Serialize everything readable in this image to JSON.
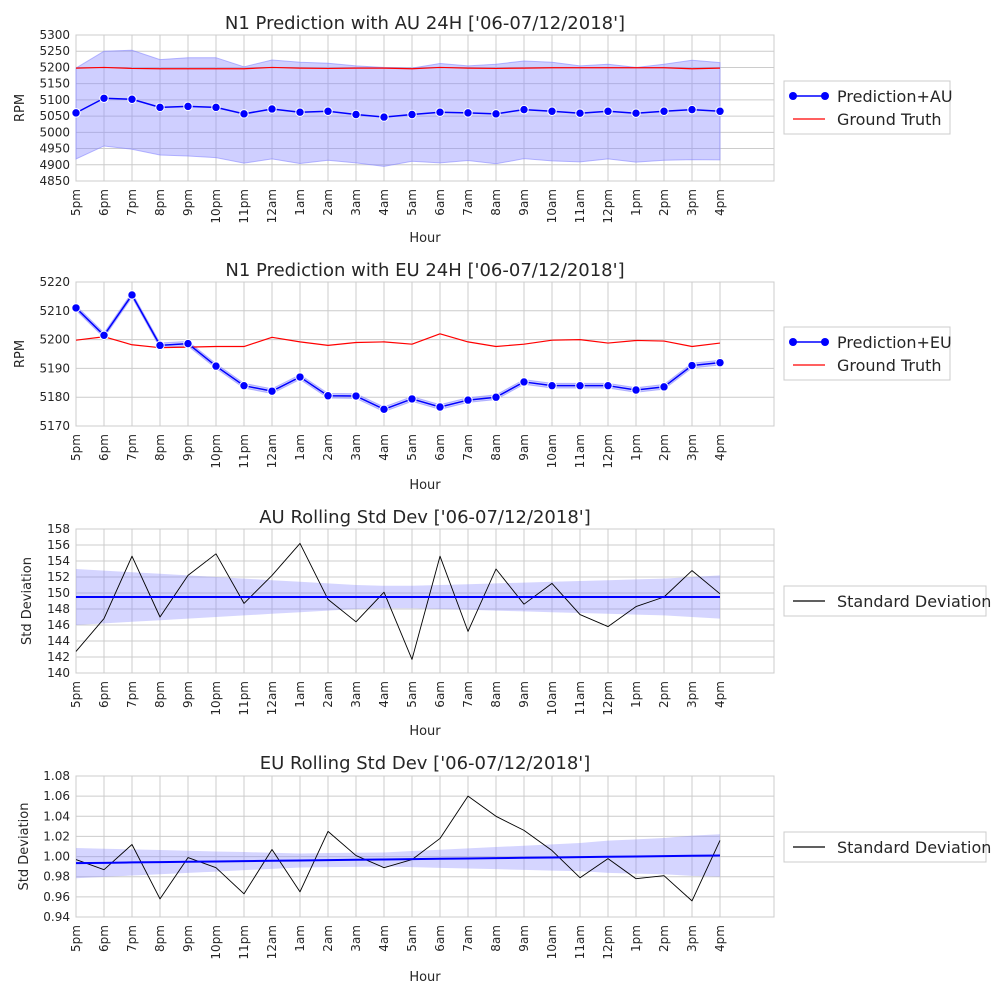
{
  "figure": {
    "hours": [
      "5pm",
      "6pm",
      "7pm",
      "8pm",
      "9pm",
      "10pm",
      "11pm",
      "12am",
      "1am",
      "2am",
      "3am",
      "4am",
      "5am",
      "6am",
      "7am",
      "8am",
      "9am",
      "10am",
      "11am",
      "12pm",
      "1pm",
      "2pm",
      "3pm",
      "4pm"
    ]
  },
  "colors": {
    "prediction": "#0000ff",
    "ground_truth": "#ff0000",
    "band": "#8888ff",
    "std_line": "#000000",
    "grid": "#cccccc"
  },
  "chart_data": [
    {
      "type": "line",
      "title": "N1 Prediction with AU 24H ['06-07/12/2018']",
      "xlabel": "Hour",
      "ylabel": "RPM",
      "ylim": [
        4850,
        5300
      ],
      "yticks": [
        4850,
        4900,
        4950,
        5000,
        5050,
        5100,
        5150,
        5200,
        5250,
        5300
      ],
      "grid": true,
      "legend_placement": "right",
      "series": [
        {
          "name": "Prediction+AU",
          "marker": true,
          "color": "#0000ff",
          "values": [
            5060,
            5105,
            5102,
            5077,
            5080,
            5077,
            5057,
            5072,
            5062,
            5065,
            5055,
            5047,
            5055,
            5062,
            5060,
            5057,
            5070,
            5065,
            5059,
            5065,
            5059,
            5065,
            5070,
            5065
          ],
          "band_upper": [
            5198,
            5250,
            5253,
            5224,
            5230,
            5230,
            5202,
            5223,
            5216,
            5213,
            5205,
            5200,
            5198,
            5212,
            5205,
            5210,
            5220,
            5216,
            5205,
            5210,
            5200,
            5210,
            5222,
            5215
          ],
          "band_lower": [
            4918,
            4958,
            4948,
            4930,
            4927,
            4922,
            4905,
            4918,
            4904,
            4914,
            4906,
            4895,
            4911,
            4906,
            4913,
            4903,
            4919,
            4912,
            4909,
            4918,
            4908,
            4914,
            4916,
            4915
          ]
        },
        {
          "name": "Ground Truth",
          "marker": false,
          "color": "#ff0000",
          "values": [
            5198,
            5200,
            5197,
            5196,
            5196,
            5196,
            5196,
            5200,
            5198,
            5197,
            5198,
            5198,
            5196,
            5200,
            5198,
            5197,
            5198,
            5199,
            5199,
            5199,
            5199,
            5199,
            5196,
            5198
          ]
        }
      ]
    },
    {
      "type": "line",
      "title": "N1 Prediction with EU 24H ['06-07/12/2018']",
      "xlabel": "Hour",
      "ylabel": "RPM",
      "ylim": [
        5170,
        5220
      ],
      "yticks": [
        5170,
        5180,
        5190,
        5200,
        5210,
        5220
      ],
      "grid": true,
      "legend_placement": "right",
      "series": [
        {
          "name": "Prediction+EU",
          "marker": true,
          "color": "#0000ff",
          "values": [
            5211,
            5201.5,
            5215.5,
            5198,
            5198.6,
            5190.8,
            5184,
            5182.1,
            5187,
            5180.5,
            5180.4,
            5175.8,
            5179.4,
            5176.6,
            5179,
            5180,
            5185.3,
            5184,
            5184,
            5184,
            5182.5,
            5183.6,
            5191,
            5192
          ],
          "band_halfwidth": 0.8
        },
        {
          "name": "Ground Truth",
          "marker": false,
          "color": "#ff0000",
          "values": [
            5199.8,
            5201,
            5198.2,
            5197.2,
            5197.4,
            5197.6,
            5197.6,
            5200.8,
            5199.2,
            5198,
            5199,
            5199.2,
            5198.4,
            5202,
            5199.2,
            5197.6,
            5198.4,
            5199.8,
            5200,
            5198.8,
            5199.7,
            5199.5,
            5197.6,
            5198.8
          ]
        }
      ]
    },
    {
      "type": "line",
      "title": "AU Rolling Std Dev ['06-07/12/2018']",
      "xlabel": "Hour",
      "ylabel": "Std Deviation",
      "ylim": [
        140,
        158
      ],
      "yticks": [
        140,
        142,
        144,
        146,
        148,
        150,
        152,
        154,
        156,
        158
      ],
      "grid": true,
      "legend_placement": "right",
      "series": [
        {
          "name": "Standard Deviation",
          "color": "#000000",
          "values": [
            142.7,
            146.8,
            154.6,
            147,
            152.2,
            154.9,
            148.7,
            152.2,
            156.2,
            149.2,
            146.4,
            150.1,
            141.7,
            154.6,
            145.2,
            153,
            148.6,
            151.2,
            147.3,
            145.8,
            148.3,
            149.5,
            152.8,
            149.9
          ]
        }
      ],
      "trend": {
        "color": "#0000ff",
        "values": [
          149.5,
          149.5,
          149.5,
          149.5,
          149.5,
          149.5,
          149.5,
          149.5,
          149.5,
          149.5,
          149.5,
          149.5,
          149.5,
          149.5,
          149.5,
          149.5,
          149.5,
          149.5,
          149.5,
          149.5,
          149.5,
          149.5,
          149.5,
          149.5
        ],
        "band_halfwidth": [
          3.5,
          3.3,
          3.1,
          2.9,
          2.7,
          2.5,
          2.3,
          2.1,
          1.9,
          1.7,
          1.5,
          1.4,
          1.4,
          1.5,
          1.6,
          1.7,
          1.8,
          1.9,
          2.0,
          2.1,
          2.2,
          2.3,
          2.5,
          2.7
        ]
      }
    },
    {
      "type": "line",
      "title": "EU Rolling Std Dev ['06-07/12/2018']",
      "xlabel": "Hour",
      "ylabel": "Std Deviation",
      "ylim": [
        0.94,
        1.08
      ],
      "yticks": [
        "0.94",
        "0.96",
        "0.98",
        "1.00",
        "1.02",
        "1.04",
        "1.06",
        "1.08"
      ],
      "grid": true,
      "legend_placement": "right",
      "series": [
        {
          "name": "Standard Deviation",
          "color": "#000000",
          "values": [
            0.997,
            0.987,
            1.012,
            0.958,
            0.999,
            0.989,
            0.963,
            1.007,
            0.965,
            1.025,
            1.001,
            0.989,
            0.997,
            1.018,
            1.06,
            1.04,
            1.026,
            1.006,
            0.979,
            0.998,
            0.978,
            0.981,
            0.956,
            1.016
          ]
        }
      ],
      "trend": {
        "color": "#0000ff",
        "values": [
          0.9935,
          0.9938,
          0.9942,
          0.9945,
          0.9948,
          0.9951,
          0.9955,
          0.9958,
          0.9961,
          0.9965,
          0.9968,
          0.9971,
          0.9975,
          0.9978,
          0.9981,
          0.9985,
          0.9988,
          0.9991,
          0.9995,
          0.9998,
          1.0001,
          1.0004,
          1.0008,
          1.0011
        ],
        "band_halfwidth": [
          0.015,
          0.014,
          0.013,
          0.012,
          0.011,
          0.01,
          0.009,
          0.008,
          0.007,
          0.007,
          0.007,
          0.007,
          0.008,
          0.009,
          0.01,
          0.011,
          0.012,
          0.013,
          0.014,
          0.016,
          0.017,
          0.018,
          0.02,
          0.021
        ]
      }
    }
  ]
}
